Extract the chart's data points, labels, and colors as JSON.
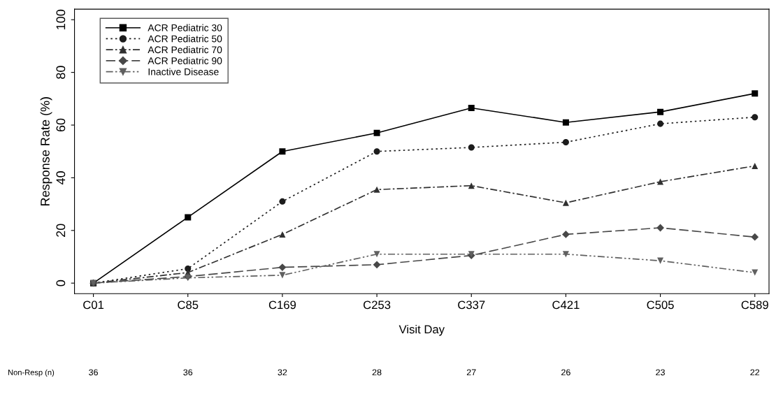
{
  "chart_data": {
    "type": "line",
    "xlabel": "Visit Day",
    "ylabel": "Response Rate (%)",
    "categories": [
      "C01",
      "C85",
      "C169",
      "C253",
      "C337",
      "C421",
      "C505",
      "C589"
    ],
    "series": [
      {
        "name": "ACR Pediatric 30",
        "color": "#000000",
        "marker": "square",
        "line_style": "solid",
        "values": [
          0,
          25,
          50,
          57,
          66.5,
          61,
          65,
          72
        ]
      },
      {
        "name": "ACR Pediatric 50",
        "color": "#1c1c1c",
        "marker": "circle",
        "line_style": "dotted",
        "values": [
          0,
          5.5,
          31,
          50,
          51.5,
          53.5,
          60.5,
          63
        ]
      },
      {
        "name": "ACR Pediatric 70",
        "color": "#303030",
        "marker": "triangle",
        "line_style": "dashdot",
        "values": [
          0,
          4,
          18.5,
          35.5,
          37,
          30.5,
          38.5,
          44.5
        ]
      },
      {
        "name": "ACR Pediatric 90",
        "color": "#484848",
        "marker": "diamond",
        "line_style": "dashed",
        "values": [
          0,
          2.5,
          6,
          7,
          10.5,
          18.5,
          21,
          17.5
        ]
      },
      {
        "name": "Inactive Disease",
        "color": "#606060",
        "marker": "triangle",
        "line_style": "dashdotdot",
        "values": [
          0,
          2,
          3,
          11,
          11,
          11,
          8.5,
          4
        ]
      }
    ],
    "ylim": [
      -4,
      104
    ],
    "yticks": [
      0,
      20,
      40,
      60,
      80,
      100
    ],
    "grid": false,
    "legend": "top left",
    "annotations": [
      "Non-Resp (n)",
      "36",
      "36",
      "32",
      "28",
      "27",
      "26",
      "23",
      "22"
    ]
  }
}
